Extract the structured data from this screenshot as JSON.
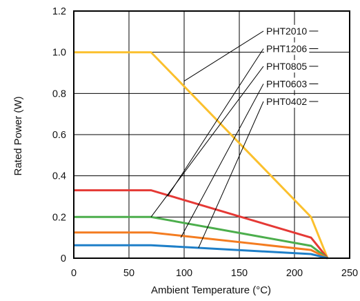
{
  "chart_data": {
    "type": "line",
    "title": "",
    "xlabel": "Ambient Temperature (°C)",
    "ylabel": "Rated Power (W)",
    "xlim": [
      0,
      250
    ],
    "ylim": [
      0,
      1.2
    ],
    "xticks": [
      0,
      50,
      100,
      150,
      200,
      250
    ],
    "xtick_labels": [
      "0",
      "50",
      "100",
      "150",
      "200",
      "250"
    ],
    "yticks": [
      0,
      0.2,
      0.4,
      0.6,
      0.8,
      1.0,
      1.2
    ],
    "ytick_labels": [
      "0",
      "0.2",
      "0.4",
      "0.6",
      "0.8",
      "1.0",
      "1.2"
    ],
    "grid": true,
    "legend": "callout labels, upper right",
    "series": [
      {
        "name": "PHT2010",
        "color": "#fbc02d",
        "x": [
          0,
          70,
          215,
          230
        ],
        "y": [
          1.0,
          1.0,
          0.2,
          0
        ],
        "callout_at": [
          100,
          0.86
        ]
      },
      {
        "name": "PHT1206",
        "color": "#e53935",
        "x": [
          0,
          70,
          215,
          230
        ],
        "y": [
          0.33,
          0.33,
          0.1,
          0
        ],
        "callout_at": [
          85,
          0.3
        ]
      },
      {
        "name": "PHT0805",
        "color": "#4cae4c",
        "x": [
          0,
          70,
          215,
          230
        ],
        "y": [
          0.2,
          0.2,
          0.06,
          0
        ],
        "callout_at": [
          70,
          0.2
        ]
      },
      {
        "name": "PHT0603",
        "color": "#f47c20",
        "x": [
          0,
          70,
          215,
          230
        ],
        "y": [
          0.125,
          0.125,
          0.04,
          0
        ],
        "callout_at": [
          97,
          0.1
        ]
      },
      {
        "name": "PHT0402",
        "color": "#1e7fc8",
        "x": [
          0,
          70,
          215,
          230
        ],
        "y": [
          0.063,
          0.063,
          0.02,
          0
        ],
        "callout_at": [
          113,
          0.05
        ]
      }
    ]
  }
}
